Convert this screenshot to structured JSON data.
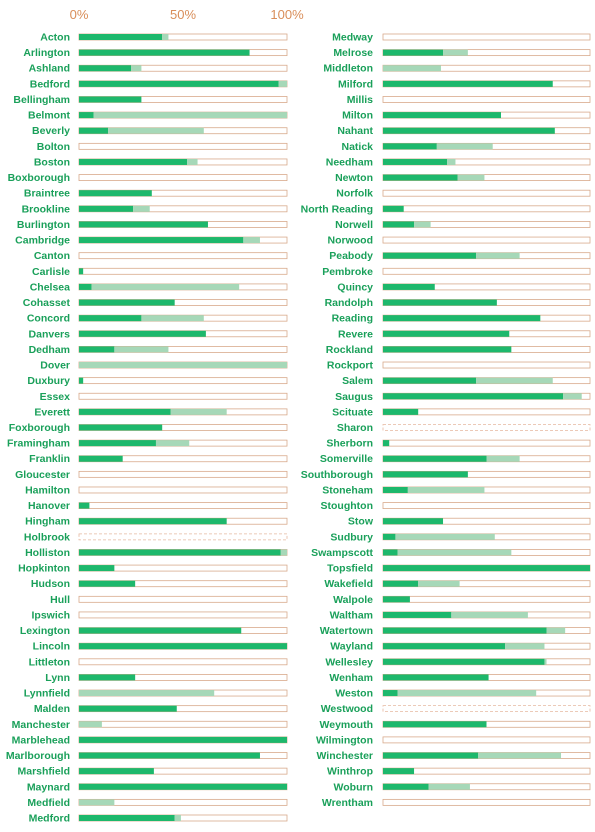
{
  "colors": {
    "primary": "#1db86c",
    "secondary": "#a6d8b8",
    "track_border": "#d8aa8c",
    "tick_text": "#d98e5a",
    "label_text": "#1aa05a"
  },
  "chart_data": {
    "type": "bar",
    "orientation": "horizontal",
    "stacked": true,
    "xlim": [
      0,
      100
    ],
    "ticks": [
      "0%",
      "50%",
      "100%"
    ],
    "title": "",
    "xlabel": "",
    "ylabel": "",
    "series_colors": [
      "#1db86c",
      "#a6d8b8"
    ],
    "panels": [
      {
        "rows": [
          {
            "town": "Acton",
            "a": 40,
            "b": 3
          },
          {
            "town": "Arlington",
            "a": 82,
            "b": 0
          },
          {
            "town": "Ashland",
            "a": 25,
            "b": 5
          },
          {
            "town": "Bedford",
            "a": 96,
            "b": 4
          },
          {
            "town": "Bellingham",
            "a": 30,
            "b": 0
          },
          {
            "town": "Belmont",
            "a": 7,
            "b": 93
          },
          {
            "town": "Beverly",
            "a": 14,
            "b": 46
          },
          {
            "town": "Bolton",
            "a": 0,
            "b": 0
          },
          {
            "town": "Boston",
            "a": 52,
            "b": 5
          },
          {
            "town": "Boxborough",
            "a": 0,
            "b": 0
          },
          {
            "town": "Braintree",
            "a": 35,
            "b": 0
          },
          {
            "town": "Brookline",
            "a": 26,
            "b": 8
          },
          {
            "town": "Burlington",
            "a": 62,
            "b": 0
          },
          {
            "town": "Cambridge",
            "a": 79,
            "b": 8
          },
          {
            "town": "Canton",
            "a": 0,
            "b": 0
          },
          {
            "town": "Carlisle",
            "a": 2,
            "b": 0
          },
          {
            "town": "Chelsea",
            "a": 6,
            "b": 71
          },
          {
            "town": "Cohasset",
            "a": 46,
            "b": 0
          },
          {
            "town": "Concord",
            "a": 30,
            "b": 30
          },
          {
            "town": "Danvers",
            "a": 61,
            "b": 0
          },
          {
            "town": "Dedham",
            "a": 17,
            "b": 26
          },
          {
            "town": "Dover",
            "a": 0,
            "b": 100
          },
          {
            "town": "Duxbury",
            "a": 2,
            "b": 0
          },
          {
            "town": "Essex",
            "a": 0,
            "b": 0
          },
          {
            "town": "Everett",
            "a": 44,
            "b": 27
          },
          {
            "town": "Foxborough",
            "a": 40,
            "b": 0
          },
          {
            "town": "Framingham",
            "a": 37,
            "b": 16
          },
          {
            "town": "Franklin",
            "a": 21,
            "b": 0
          },
          {
            "town": "Gloucester",
            "a": 0,
            "b": 0
          },
          {
            "town": "Hamilton",
            "a": 0,
            "b": 0
          },
          {
            "town": "Hanover",
            "a": 5,
            "b": 0
          },
          {
            "town": "Hingham",
            "a": 71,
            "b": 0
          },
          {
            "town": "Holbrook",
            "a": 0,
            "b": 0,
            "dashed": true
          },
          {
            "town": "Holliston",
            "a": 97,
            "b": 3
          },
          {
            "town": "Hopkinton",
            "a": 17,
            "b": 0
          },
          {
            "town": "Hudson",
            "a": 27,
            "b": 0
          },
          {
            "town": "Hull",
            "a": 0,
            "b": 0
          },
          {
            "town": "Ipswich",
            "a": 0,
            "b": 0
          },
          {
            "town": "Lexington",
            "a": 78,
            "b": 0
          },
          {
            "town": "Lincoln",
            "a": 100,
            "b": 0
          },
          {
            "town": "Littleton",
            "a": 0,
            "b": 0
          },
          {
            "town": "Lynn",
            "a": 27,
            "b": 0
          },
          {
            "town": "Lynnfield",
            "a": 0,
            "b": 65
          },
          {
            "town": "Malden",
            "a": 47,
            "b": 0
          },
          {
            "town": "Manchester",
            "a": 0,
            "b": 11
          },
          {
            "town": "Marblehead",
            "a": 100,
            "b": 0
          },
          {
            "town": "Marlborough",
            "a": 87,
            "b": 0
          },
          {
            "town": "Marshfield",
            "a": 36,
            "b": 0
          },
          {
            "town": "Maynard",
            "a": 100,
            "b": 0
          },
          {
            "town": "Medfield",
            "a": 0,
            "b": 17
          },
          {
            "town": "Medford",
            "a": 46,
            "b": 3
          }
        ]
      },
      {
        "rows": [
          {
            "town": "Medway",
            "a": 0,
            "b": 0
          },
          {
            "town": "Melrose",
            "a": 29,
            "b": 12
          },
          {
            "town": "Middleton",
            "a": 0,
            "b": 28
          },
          {
            "town": "Milford",
            "a": 82,
            "b": 0
          },
          {
            "town": "Millis",
            "a": 0,
            "b": 0
          },
          {
            "town": "Milton",
            "a": 57,
            "b": 0
          },
          {
            "town": "Nahant",
            "a": 83,
            "b": 0
          },
          {
            "town": "Natick",
            "a": 26,
            "b": 27
          },
          {
            "town": "Needham",
            "a": 31,
            "b": 4
          },
          {
            "town": "Newton",
            "a": 36,
            "b": 13
          },
          {
            "town": "Norfolk",
            "a": 0,
            "b": 0
          },
          {
            "town": "North Reading",
            "a": 10,
            "b": 0
          },
          {
            "town": "Norwell",
            "a": 15,
            "b": 8
          },
          {
            "town": "Norwood",
            "a": 0,
            "b": 0
          },
          {
            "town": "Peabody",
            "a": 45,
            "b": 21
          },
          {
            "town": "Pembroke",
            "a": 0,
            "b": 0
          },
          {
            "town": "Quincy",
            "a": 25,
            "b": 0
          },
          {
            "town": "Randolph",
            "a": 55,
            "b": 0
          },
          {
            "town": "Reading",
            "a": 76,
            "b": 0
          },
          {
            "town": "Revere",
            "a": 61,
            "b": 0
          },
          {
            "town": "Rockland",
            "a": 62,
            "b": 0
          },
          {
            "town": "Rockport",
            "a": 0,
            "b": 0
          },
          {
            "town": "Salem",
            "a": 45,
            "b": 37
          },
          {
            "town": "Saugus",
            "a": 87,
            "b": 9
          },
          {
            "town": "Scituate",
            "a": 17,
            "b": 0
          },
          {
            "town": "Sharon",
            "a": 0,
            "b": 0,
            "dashed": true
          },
          {
            "town": "Sherborn",
            "a": 3,
            "b": 0
          },
          {
            "town": "Somerville",
            "a": 50,
            "b": 16
          },
          {
            "town": "Southborough",
            "a": 41,
            "b": 0
          },
          {
            "town": "Stoneham",
            "a": 12,
            "b": 37
          },
          {
            "town": "Stoughton",
            "a": 0,
            "b": 0
          },
          {
            "town": "Stow",
            "a": 29,
            "b": 0
          },
          {
            "town": "Sudbury",
            "a": 6,
            "b": 48
          },
          {
            "town": "Swampscott",
            "a": 7,
            "b": 55
          },
          {
            "town": "Topsfield",
            "a": 100,
            "b": 0
          },
          {
            "town": "Wakefield",
            "a": 17,
            "b": 20
          },
          {
            "town": "Walpole",
            "a": 13,
            "b": 0
          },
          {
            "town": "Waltham",
            "a": 33,
            "b": 37
          },
          {
            "town": "Watertown",
            "a": 79,
            "b": 9
          },
          {
            "town": "Wayland",
            "a": 59,
            "b": 19
          },
          {
            "town": "Wellesley",
            "a": 78,
            "b": 1
          },
          {
            "town": "Wenham",
            "a": 51,
            "b": 0
          },
          {
            "town": "Weston",
            "a": 7,
            "b": 67
          },
          {
            "town": "Westwood",
            "a": 0,
            "b": 0,
            "dashed": true
          },
          {
            "town": "Weymouth",
            "a": 50,
            "b": 0
          },
          {
            "town": "Wilmington",
            "a": 0,
            "b": 0
          },
          {
            "town": "Winchester",
            "a": 46,
            "b": 40
          },
          {
            "town": "Winthrop",
            "a": 15,
            "b": 0
          },
          {
            "town": "Woburn",
            "a": 22,
            "b": 20
          },
          {
            "town": "Wrentham",
            "a": 0,
            "b": 0
          }
        ]
      }
    ]
  }
}
